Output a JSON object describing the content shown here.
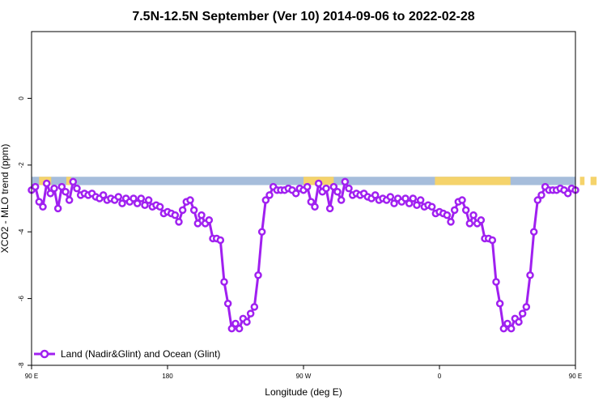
{
  "chart_data": {
    "type": "line",
    "title": "7.5N-12.5N September (Ver 10)   2014-09-06 to 2022-02-28",
    "xlabel": "Longitude (deg E)",
    "ylabel": "XCO2 - MLO trend (ppm)",
    "xlim": [
      90,
      450
    ],
    "ylim": [
      -8,
      2
    ],
    "x_ticks": [
      {
        "value": 90,
        "label": "90 E"
      },
      {
        "value": 180,
        "label": "180"
      },
      {
        "value": 270,
        "label": "90 W"
      },
      {
        "value": 360,
        "label": "0"
      },
      {
        "value": 450,
        "label": "90 E"
      },
      {
        "value": 540,
        "label": "180"
      }
    ],
    "y_ticks": [
      {
        "value": 0,
        "label": "0"
      },
      {
        "value": -2,
        "label": "-2"
      },
      {
        "value": -4,
        "label": "-4"
      },
      {
        "value": -6,
        "label": "-6"
      },
      {
        "value": -8,
        "label": "-8"
      }
    ],
    "legend_position": "bottom-left",
    "land_ocean_strip": {
      "y_top": -2.35,
      "y_bottom": -2.6,
      "ocean_color": "#a6bddb",
      "land_color": "#f5d36b"
    },
    "land_segments": [
      [
        95,
        103
      ],
      [
        113,
        116
      ],
      [
        270,
        290
      ],
      [
        357,
        407
      ],
      [
        453,
        456
      ],
      [
        460,
        464
      ],
      [
        481,
        487
      ]
    ],
    "series": [
      {
        "name": "Land (Nadir&Glint) and Ocean (Glint)",
        "color": "#a020f0",
        "x": [
          90,
          92.5,
          95,
          97.5,
          100,
          102.5,
          105,
          107.5,
          110,
          112.5,
          115,
          117.5,
          120,
          122.5,
          125,
          127.5,
          130,
          132.5,
          135,
          137.5,
          140,
          142.5,
          145,
          147.5,
          150,
          152.5,
          155,
          157.5,
          160,
          162.5,
          165,
          167.5,
          170,
          172.5,
          175,
          177.5,
          180,
          182.5,
          185,
          187.5,
          190,
          192.5,
          195,
          197.5,
          200,
          202.5,
          205,
          207.5,
          210,
          212.5,
          215,
          217.5,
          220,
          222.5,
          225,
          227.5,
          230,
          232.5,
          235,
          237.5,
          240,
          242.5,
          245,
          247.5,
          250,
          252.5,
          255,
          257.5,
          260,
          262.5,
          265,
          267.5,
          270,
          272.5,
          275,
          277.5,
          280,
          282.5,
          285,
          287.5,
          290,
          292.5,
          295,
          297.5,
          300,
          302.5,
          305,
          307.5,
          310,
          312.5,
          315,
          317.5,
          320,
          322.5,
          325,
          327.5,
          330,
          332.5,
          335,
          337.5,
          340,
          342.5,
          345,
          347.5,
          350,
          352.5,
          355,
          357.5,
          360,
          362.5,
          365,
          367.5,
          370,
          372.5,
          375,
          377.5,
          380,
          382.5,
          385,
          387.5,
          390,
          392.5,
          395,
          397.5,
          400,
          402.5,
          405,
          407.5,
          410,
          412.5,
          415,
          417.5,
          420,
          422.5,
          425,
          427.5,
          430,
          432.5,
          435,
          437.5,
          440,
          442.5,
          445,
          447.5,
          450
        ],
        "y": [
          -2.75,
          -2.65,
          -3.1,
          -3.25,
          -2.55,
          -2.85,
          -2.7,
          -3.3,
          -2.65,
          -2.8,
          -3.05,
          -2.5,
          -2.7,
          -2.9,
          -2.85,
          -2.9,
          -2.85,
          -2.95,
          -3.0,
          -2.9,
          -3.05,
          -3.0,
          -3.05,
          -2.95,
          -3.15,
          -3.0,
          -3.1,
          -3.0,
          -3.15,
          -3.0,
          -3.2,
          -3.05,
          -3.25,
          -3.2,
          -3.25,
          -3.45,
          -3.4,
          -3.45,
          -3.5,
          -3.7,
          -3.35,
          -3.1,
          -3.05,
          -3.35,
          -3.75,
          -3.5,
          -3.75,
          -3.65,
          -4.2,
          -4.2,
          -4.25,
          -5.5,
          -6.15,
          -6.9,
          -6.75,
          -6.9,
          -6.6,
          -6.7,
          -6.45,
          -6.25,
          -5.3,
          -4.0,
          -3.05,
          -2.9,
          -2.65,
          -2.75,
          -2.75,
          -2.75,
          -2.7,
          -2.75,
          -2.85,
          -2.7,
          -2.75,
          -2.65,
          -3.1,
          -3.25,
          -2.55,
          -2.8,
          -2.7,
          -3.3,
          -2.65,
          -2.8,
          -3.05,
          -2.5,
          -2.7,
          -2.9,
          -2.85,
          -2.9,
          -2.85,
          -2.95,
          -3.0,
          -2.9,
          -3.05,
          -3.0,
          -3.05,
          -2.95,
          -3.15,
          -3.0,
          -3.1,
          -3.0,
          -3.15,
          -3.0,
          -3.2,
          -3.05,
          -3.25,
          -3.2,
          -3.25,
          -3.45,
          -3.4,
          -3.45,
          -3.5,
          -3.7,
          -3.35,
          -3.1,
          -3.05,
          -3.35,
          -3.75,
          -3.5,
          -3.75,
          -3.65,
          -4.2,
          -4.2,
          -4.25,
          -5.5,
          -6.15,
          -6.9,
          -6.75,
          -6.9,
          -6.6,
          -6.7,
          -6.45,
          -6.25,
          -5.3,
          -4.0,
          -3.05,
          -2.9,
          -2.65,
          -2.75,
          -2.75,
          -2.75,
          -2.7,
          -2.75,
          -2.85,
          -2.7,
          -2.75
        ]
      }
    ]
  }
}
